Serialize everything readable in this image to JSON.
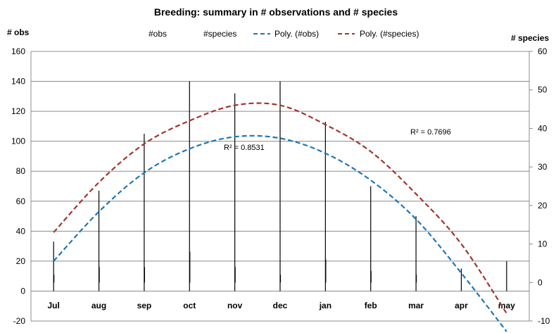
{
  "chart_data": {
    "type": "bar",
    "title": "Breeding: summary in # observations and # species",
    "ylabel": "# obs",
    "y2label": "# species",
    "ylim": [
      -20,
      160
    ],
    "y2lim": [
      -10,
      60
    ],
    "yticks": [
      -20,
      0,
      20,
      40,
      60,
      80,
      100,
      120,
      140,
      160
    ],
    "y2ticks": [
      -10,
      0,
      10,
      20,
      30,
      40,
      50,
      60
    ],
    "categories": [
      "Jul",
      "aug",
      "sep",
      "oct",
      "nov",
      "dec",
      "jan",
      "feb",
      "mar",
      "apr",
      "may"
    ],
    "grid": true,
    "series": [
      {
        "name": "#obs",
        "axis": "left",
        "color": "#000000",
        "values": [
          33,
          67,
          105,
          140,
          132,
          140,
          113,
          70,
          50,
          15,
          20
        ]
      },
      {
        "name": "#species",
        "axis": "right",
        "color": "#000000",
        "values": [
          2,
          4,
          4,
          8,
          4,
          2,
          6,
          3,
          2,
          0,
          0
        ]
      },
      {
        "name": "Poly. (#obs)",
        "axis": "left",
        "type": "trendline",
        "color": "#1f77b4",
        "r2": "R² = 0.8531",
        "values": [
          20,
          53,
          79,
          95,
          103,
          102,
          92,
          74,
          48,
          12,
          -27
        ]
      },
      {
        "name": "Poly. (#species)",
        "axis": "right",
        "type": "trendline",
        "color": "#a0352e",
        "r2": "R² = 0.7696",
        "values": [
          13,
          26,
          36,
          42,
          46,
          46,
          41,
          34,
          23,
          10,
          -8
        ]
      }
    ],
    "legend_position": "top"
  }
}
